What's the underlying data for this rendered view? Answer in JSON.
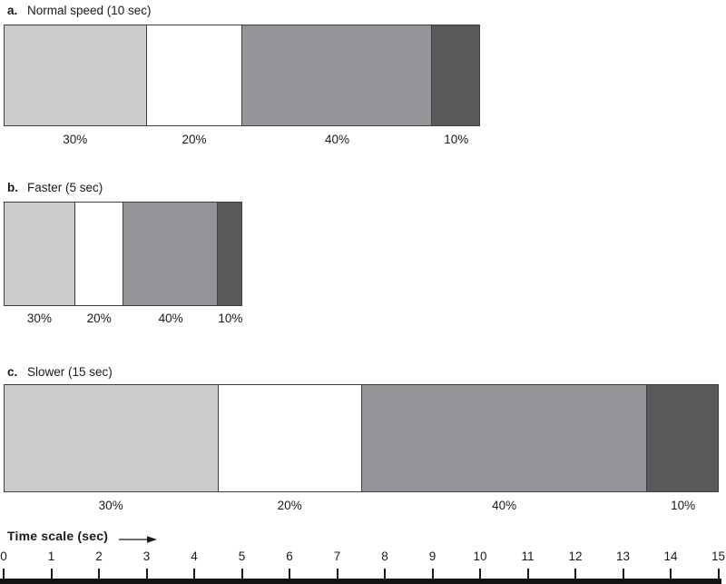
{
  "figure": {
    "background": "#ffffff",
    "text_color": "#1a1a1a"
  },
  "chart_data": {
    "type": "bar",
    "subtype": "horizontal-stacked-percentage-duration-bars",
    "panels": [
      {
        "id": "a",
        "label_prefix": "a.",
        "title": "Normal speed (10 sec)",
        "duration_sec": 10,
        "segments": [
          {
            "label": "30%",
            "value_pct": 30,
            "color": "#c9cbcd"
          },
          {
            "label": "20%",
            "value_pct": 20,
            "color": "#ffffff"
          },
          {
            "label": "40%",
            "value_pct": 40,
            "color": "#939598"
          },
          {
            "label": "10%",
            "value_pct": 10,
            "color": "#58595b"
          }
        ]
      },
      {
        "id": "b",
        "label_prefix": "b.",
        "title": "Faster (5 sec)",
        "duration_sec": 5,
        "segments": [
          {
            "label": "30%",
            "value_pct": 30,
            "color": "#c9cbcd"
          },
          {
            "label": "20%",
            "value_pct": 20,
            "color": "#ffffff"
          },
          {
            "label": "40%",
            "value_pct": 40,
            "color": "#939598"
          },
          {
            "label": "10%",
            "value_pct": 10,
            "color": "#58595b"
          }
        ]
      },
      {
        "id": "c",
        "label_prefix": "c.",
        "title": "Slower (15 sec)",
        "duration_sec": 15,
        "segments": [
          {
            "label": "30%",
            "value_pct": 30,
            "color": "#c9cbcd"
          },
          {
            "label": "20%",
            "value_pct": 20,
            "color": "#ffffff"
          },
          {
            "label": "40%",
            "value_pct": 40,
            "color": "#939598"
          },
          {
            "label": "10%",
            "value_pct": 10,
            "color": "#58595b"
          }
        ]
      }
    ],
    "axis": {
      "label": "Time scale (sec)",
      "unit": "sec",
      "min": 0,
      "max": 15,
      "ticks": [
        "0",
        "1",
        "2",
        "3",
        "4",
        "5",
        "6",
        "7",
        "8",
        "9",
        "10",
        "11",
        "12",
        "13",
        "14",
        "15"
      ]
    },
    "layout_hints": {
      "orientation": "horizontal",
      "legend": "none",
      "grid": "off",
      "bar_border_color": "#3f3f41",
      "axis_bar_color": "#141414"
    }
  }
}
